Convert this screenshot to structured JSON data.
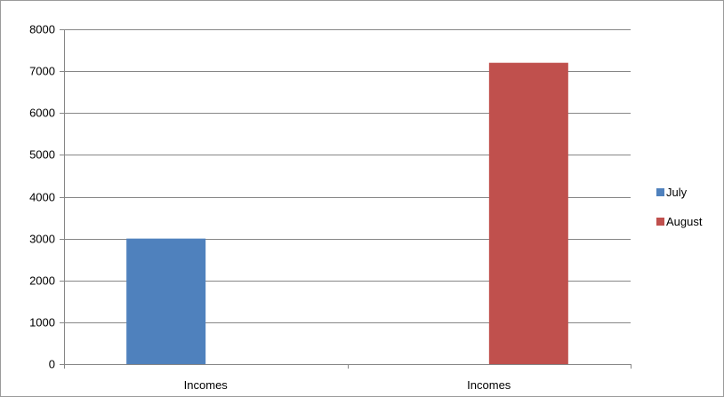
{
  "chart_data": {
    "type": "bar",
    "categories": [
      "Incomes",
      "Incomes"
    ],
    "series": [
      {
        "name": "July",
        "values": [
          3000,
          null
        ],
        "color": "#4f81bd"
      },
      {
        "name": "August",
        "values": [
          null,
          7200
        ],
        "color": "#c0504d"
      }
    ],
    "ylim": [
      0,
      8000
    ],
    "yticks": [
      0,
      1000,
      2000,
      3000,
      4000,
      5000,
      6000,
      7000,
      8000
    ],
    "title": "",
    "xlabel": "",
    "ylabel": "",
    "grid": true,
    "legend_position": "right"
  }
}
